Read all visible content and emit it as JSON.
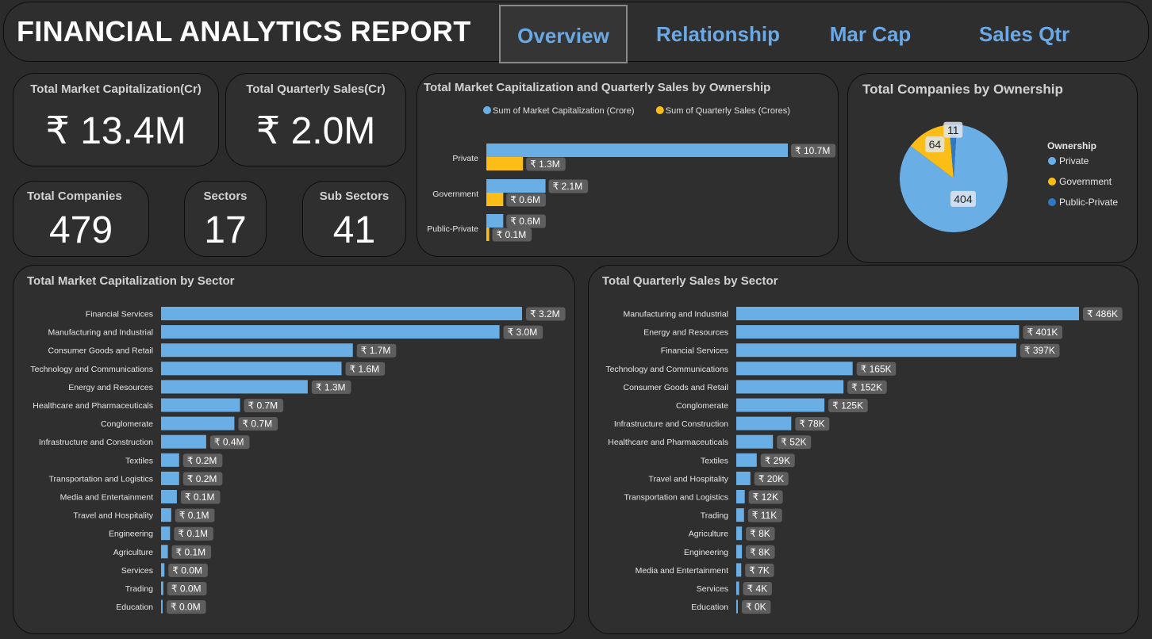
{
  "header": {
    "title": "FINANCIAL ANALYTICS REPORT",
    "tabs": [
      {
        "label": "Overview",
        "active": true
      },
      {
        "label": "Relationship",
        "active": false
      },
      {
        "label": "Mar Cap",
        "active": false
      },
      {
        "label": "Sales Qtr",
        "active": false
      }
    ]
  },
  "colors": {
    "market_cap": "#6aaee6",
    "quarterly_sales": "#fbbd16",
    "private": "#6aaee6",
    "government": "#fbbd16",
    "public_private": "#2f78c4",
    "label_bg": "#5e5e5e"
  },
  "kpis": {
    "market_cap": {
      "title": "Total Market Capitalization(Cr)",
      "value": "₹ 13.4M"
    },
    "quarterly_sales": {
      "title": "Total Quarterly Sales(Cr)",
      "value": "₹ 2.0M"
    },
    "companies": {
      "title": "Total Companies",
      "value": "479"
    },
    "sectors": {
      "title": "Sectors",
      "value": "17"
    },
    "sub_sectors": {
      "title": "Sub Sectors",
      "value": "41"
    }
  },
  "chart_data": [
    {
      "type": "bar",
      "orientation": "horizontal",
      "title": "Total Market Capitalization and Quarterly Sales by Ownership",
      "categories": [
        "Private",
        "Government",
        "Public-Private"
      ],
      "series": [
        {
          "name": "Sum of Market Capitalization (Crore)",
          "values": [
            10.7,
            2.1,
            0.6
          ],
          "labels": [
            "₹ 10.7M",
            "₹ 2.1M",
            "₹ 0.6M"
          ]
        },
        {
          "name": "Sum of Quarterly Sales (Crores)",
          "values": [
            1.3,
            0.6,
            0.1
          ],
          "labels": [
            "₹ 1.3M",
            "₹ 0.6M",
            "₹ 0.1M"
          ]
        }
      ],
      "unit": "M",
      "legend": "top"
    },
    {
      "type": "pie",
      "title": "Total Companies by Ownership",
      "legend_title": "Ownership",
      "categories": [
        "Private",
        "Government",
        "Public-Private"
      ],
      "values": [
        404,
        64,
        11
      ],
      "legend": "right"
    },
    {
      "type": "bar",
      "orientation": "horizontal",
      "title": "Total Market Capitalization by Sector",
      "categories": [
        "Financial Services",
        "Manufacturing and Industrial",
        "Consumer Goods and Retail",
        "Technology and Communications",
        "Energy and Resources",
        "Healthcare and Pharmaceuticals",
        "Conglomerate",
        "Infrastructure and Construction",
        "Textiles",
        "Transportation and Logistics",
        "Media and Entertainment",
        "Travel and Hospitality",
        "Engineering",
        "Agriculture",
        "Services",
        "Trading",
        "Education"
      ],
      "values": [
        3.2,
        3.0,
        1.7,
        1.6,
        1.3,
        0.7,
        0.65,
        0.4,
        0.16,
        0.16,
        0.14,
        0.09,
        0.08,
        0.06,
        0.03,
        0.02,
        0.01
      ],
      "labels": [
        "₹ 3.2M",
        "₹ 3.0M",
        "₹ 1.7M",
        "₹ 1.6M",
        "₹ 1.3M",
        "₹ 0.7M",
        "₹ 0.7M",
        "₹ 0.4M",
        "₹ 0.2M",
        "₹ 0.2M",
        "₹ 0.1M",
        "₹ 0.1M",
        "₹ 0.1M",
        "₹ 0.1M",
        "₹ 0.0M",
        "₹ 0.0M",
        "₹ 0.0M"
      ],
      "unit": "M"
    },
    {
      "type": "bar",
      "orientation": "horizontal",
      "title": "Total Quarterly Sales by Sector",
      "categories": [
        "Manufacturing and Industrial",
        "Energy and Resources",
        "Financial Services",
        "Technology and Communications",
        "Consumer Goods and Retail",
        "Conglomerate",
        "Infrastructure and Construction",
        "Healthcare and Pharmaceuticals",
        "Textiles",
        "Travel and Hospitality",
        "Transportation and Logistics",
        "Trading",
        "Agriculture",
        "Engineering",
        "Media and Entertainment",
        "Services",
        "Education"
      ],
      "values": [
        486,
        401,
        397,
        165,
        152,
        125,
        78,
        52,
        29,
        20,
        12,
        11,
        8,
        8,
        7,
        4,
        0.4
      ],
      "labels": [
        "₹ 486K",
        "₹ 401K",
        "₹ 397K",
        "₹ 165K",
        "₹ 152K",
        "₹ 125K",
        "₹ 78K",
        "₹ 52K",
        "₹ 29K",
        "₹ 20K",
        "₹ 12K",
        "₹ 11K",
        "₹ 8K",
        "₹ 8K",
        "₹ 7K",
        "₹ 4K",
        "₹ 0K"
      ],
      "unit": "K"
    }
  ]
}
